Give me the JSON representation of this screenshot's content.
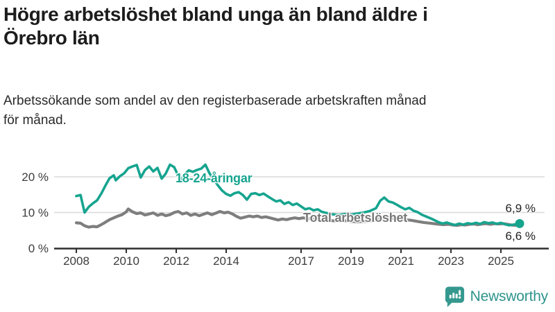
{
  "header": {
    "title_lines": [
      "Högre arbetslöshet bland unga än bland äldre i",
      "Örebro län"
    ],
    "subtitle_lines": [
      "Arbetssökande som andel av den registerbaserade arbetskraften månad",
      "för månad."
    ]
  },
  "chart_data": {
    "type": "line",
    "unit": "%",
    "grid": "horizontal",
    "x_axis": {
      "ticks": [
        2008,
        2010,
        2012,
        2014,
        2017,
        2019,
        2021,
        2023,
        2025
      ],
      "range": [
        2007.1,
        2026.8
      ]
    },
    "y_axis": {
      "ticks": [
        {
          "value": 0,
          "label": "0 %"
        },
        {
          "value": 10,
          "label": "10 %"
        },
        {
          "value": 20,
          "label": "20 %"
        }
      ],
      "range": [
        0,
        25
      ]
    },
    "colors": {
      "young": "#16a48f",
      "total": "#7e7e7e",
      "grid": "#d9d9d9",
      "axis": "#2e2e2e",
      "tick_text": "#3c3c3c"
    },
    "series": [
      {
        "name": "Total arbetslöshet",
        "color": "#7e7e7e",
        "end_label": "6,6 %",
        "end_value": 6.6,
        "points": [
          [
            2008.0,
            7.1
          ],
          [
            2008.17,
            7.0
          ],
          [
            2008.33,
            6.3
          ],
          [
            2008.5,
            5.9
          ],
          [
            2008.67,
            6.1
          ],
          [
            2008.83,
            6.0
          ],
          [
            2009.0,
            6.6
          ],
          [
            2009.17,
            7.3
          ],
          [
            2009.33,
            8.0
          ],
          [
            2009.5,
            8.5
          ],
          [
            2009.67,
            9.0
          ],
          [
            2009.83,
            9.4
          ],
          [
            2010.0,
            10.2
          ],
          [
            2010.08,
            11.0
          ],
          [
            2010.25,
            10.2
          ],
          [
            2010.42,
            9.7
          ],
          [
            2010.58,
            9.9
          ],
          [
            2010.75,
            9.3
          ],
          [
            2010.92,
            9.6
          ],
          [
            2011.08,
            9.9
          ],
          [
            2011.25,
            9.2
          ],
          [
            2011.42,
            9.6
          ],
          [
            2011.58,
            9.1
          ],
          [
            2011.75,
            9.4
          ],
          [
            2011.92,
            10.0
          ],
          [
            2012.08,
            10.3
          ],
          [
            2012.25,
            9.6
          ],
          [
            2012.42,
            9.9
          ],
          [
            2012.58,
            9.2
          ],
          [
            2012.75,
            9.6
          ],
          [
            2012.92,
            9.1
          ],
          [
            2013.08,
            9.5
          ],
          [
            2013.25,
            9.9
          ],
          [
            2013.42,
            9.4
          ],
          [
            2013.58,
            9.8
          ],
          [
            2013.75,
            10.3
          ],
          [
            2013.92,
            9.9
          ],
          [
            2014.08,
            10.1
          ],
          [
            2014.25,
            9.6
          ],
          [
            2014.42,
            8.9
          ],
          [
            2014.58,
            8.4
          ],
          [
            2014.75,
            8.7
          ],
          [
            2014.92,
            9.0
          ],
          [
            2015.08,
            8.8
          ],
          [
            2015.25,
            9.0
          ],
          [
            2015.42,
            8.6
          ],
          [
            2015.58,
            8.8
          ],
          [
            2015.75,
            8.5
          ],
          [
            2015.92,
            8.2
          ],
          [
            2016.08,
            7.9
          ],
          [
            2016.25,
            8.2
          ],
          [
            2016.42,
            8.0
          ],
          [
            2016.58,
            8.3
          ],
          [
            2016.75,
            8.5
          ],
          [
            2016.92,
            8.3
          ],
          [
            2017.08,
            8.5
          ],
          [
            2017.25,
            8.3
          ],
          [
            2017.5,
            8.2
          ],
          [
            2017.75,
            8.0
          ],
          [
            2018.0,
            7.9
          ],
          [
            2018.25,
            7.7
          ],
          [
            2018.5,
            7.6
          ],
          [
            2018.75,
            7.7
          ],
          [
            2019.0,
            7.5
          ],
          [
            2019.25,
            7.4
          ],
          [
            2019.5,
            7.5
          ],
          [
            2019.75,
            7.6
          ],
          [
            2020.0,
            7.9
          ],
          [
            2020.25,
            8.8
          ],
          [
            2020.42,
            8.6
          ],
          [
            2020.67,
            8.4
          ],
          [
            2020.92,
            8.2
          ],
          [
            2021.17,
            8.0
          ],
          [
            2021.42,
            7.8
          ],
          [
            2021.67,
            7.5
          ],
          [
            2021.92,
            7.2
          ],
          [
            2022.17,
            7.0
          ],
          [
            2022.42,
            6.8
          ],
          [
            2022.67,
            6.6
          ],
          [
            2022.92,
            6.7
          ],
          [
            2023.08,
            6.5
          ],
          [
            2023.25,
            6.4
          ],
          [
            2023.42,
            6.6
          ],
          [
            2023.58,
            6.5
          ],
          [
            2023.75,
            6.7
          ],
          [
            2023.92,
            6.8
          ],
          [
            2024.08,
            6.6
          ],
          [
            2024.25,
            6.8
          ],
          [
            2024.42,
            6.9
          ],
          [
            2024.58,
            6.7
          ],
          [
            2024.75,
            6.9
          ],
          [
            2024.92,
            6.8
          ],
          [
            2025.08,
            6.9
          ],
          [
            2025.25,
            6.7
          ],
          [
            2025.42,
            6.5
          ],
          [
            2025.58,
            6.4
          ],
          [
            2025.75,
            6.6
          ]
        ]
      },
      {
        "name": "18-24-åringar",
        "color": "#16a48f",
        "end_label": "6,9 %",
        "end_value": 6.9,
        "points": [
          [
            2008.0,
            14.6
          ],
          [
            2008.17,
            14.9
          ],
          [
            2008.33,
            10.0
          ],
          [
            2008.5,
            11.6
          ],
          [
            2008.67,
            12.6
          ],
          [
            2008.83,
            13.4
          ],
          [
            2009.0,
            15.3
          ],
          [
            2009.17,
            17.6
          ],
          [
            2009.33,
            19.6
          ],
          [
            2009.5,
            20.4
          ],
          [
            2009.58,
            19.0
          ],
          [
            2009.75,
            20.2
          ],
          [
            2009.92,
            21.0
          ],
          [
            2010.08,
            22.4
          ],
          [
            2010.25,
            22.9
          ],
          [
            2010.42,
            23.3
          ],
          [
            2010.58,
            19.8
          ],
          [
            2010.75,
            21.9
          ],
          [
            2010.92,
            22.9
          ],
          [
            2011.08,
            21.5
          ],
          [
            2011.25,
            22.5
          ],
          [
            2011.42,
            19.5
          ],
          [
            2011.58,
            20.9
          ],
          [
            2011.75,
            23.4
          ],
          [
            2011.92,
            22.7
          ],
          [
            2012.08,
            20.3
          ],
          [
            2012.17,
            18.7
          ],
          [
            2012.33,
            20.6
          ],
          [
            2012.5,
            21.8
          ],
          [
            2012.67,
            21.4
          ],
          [
            2012.83,
            21.9
          ],
          [
            2013.0,
            22.3
          ],
          [
            2013.17,
            23.4
          ],
          [
            2013.33,
            21.0
          ],
          [
            2013.5,
            19.3
          ],
          [
            2013.67,
            17.6
          ],
          [
            2013.83,
            16.2
          ],
          [
            2014.0,
            15.2
          ],
          [
            2014.17,
            14.7
          ],
          [
            2014.33,
            15.4
          ],
          [
            2014.5,
            15.7
          ],
          [
            2014.67,
            14.9
          ],
          [
            2014.83,
            13.6
          ],
          [
            2015.0,
            15.2
          ],
          [
            2015.17,
            15.4
          ],
          [
            2015.33,
            14.9
          ],
          [
            2015.5,
            15.3
          ],
          [
            2015.67,
            14.5
          ],
          [
            2015.83,
            13.8
          ],
          [
            2016.0,
            13.1
          ],
          [
            2016.17,
            13.4
          ],
          [
            2016.33,
            12.4
          ],
          [
            2016.5,
            12.9
          ],
          [
            2016.67,
            12.1
          ],
          [
            2016.83,
            12.5
          ],
          [
            2017.0,
            11.7
          ],
          [
            2017.17,
            10.9
          ],
          [
            2017.33,
            11.2
          ],
          [
            2017.5,
            10.6
          ],
          [
            2017.67,
            10.9
          ],
          [
            2017.83,
            10.2
          ],
          [
            2018.0,
            9.9
          ],
          [
            2018.25,
            9.5
          ],
          [
            2018.5,
            9.3
          ],
          [
            2018.75,
            9.6
          ],
          [
            2019.0,
            9.4
          ],
          [
            2019.25,
            9.7
          ],
          [
            2019.5,
            10.0
          ],
          [
            2019.75,
            10.4
          ],
          [
            2020.0,
            11.2
          ],
          [
            2020.17,
            13.3
          ],
          [
            2020.33,
            14.2
          ],
          [
            2020.5,
            13.1
          ],
          [
            2020.67,
            12.8
          ],
          [
            2020.83,
            12.2
          ],
          [
            2021.0,
            11.5
          ],
          [
            2021.17,
            10.9
          ],
          [
            2021.33,
            11.3
          ],
          [
            2021.5,
            10.5
          ],
          [
            2021.67,
            10.1
          ],
          [
            2021.83,
            9.4
          ],
          [
            2022.0,
            8.9
          ],
          [
            2022.17,
            8.4
          ],
          [
            2022.33,
            7.9
          ],
          [
            2022.5,
            7.3
          ],
          [
            2022.67,
            6.9
          ],
          [
            2022.83,
            7.2
          ],
          [
            2023.0,
            6.8
          ],
          [
            2023.17,
            6.5
          ],
          [
            2023.33,
            6.9
          ],
          [
            2023.5,
            6.6
          ],
          [
            2023.67,
            7.0
          ],
          [
            2023.83,
            6.8
          ],
          [
            2024.0,
            7.1
          ],
          [
            2024.17,
            6.8
          ],
          [
            2024.33,
            7.3
          ],
          [
            2024.5,
            7.0
          ],
          [
            2024.67,
            7.2
          ],
          [
            2024.83,
            6.8
          ],
          [
            2025.0,
            7.1
          ],
          [
            2025.17,
            6.7
          ],
          [
            2025.33,
            6.4
          ],
          [
            2025.5,
            6.6
          ],
          [
            2025.75,
            6.9
          ]
        ]
      }
    ]
  },
  "footer": {
    "brand": "Newsworthy",
    "brand_icon": "speech-bubble-bar-chart-icon",
    "brand_color": "#2e948c"
  }
}
